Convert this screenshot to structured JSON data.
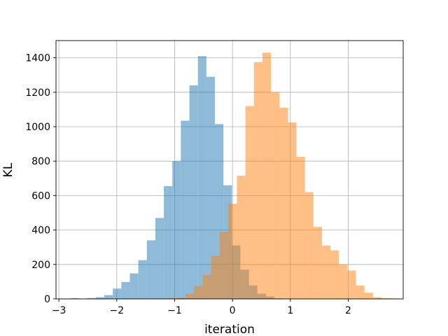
{
  "chart_data": {
    "type": "bar",
    "subtype": "overlaid-histogram",
    "title": "",
    "xlabel": "iteration",
    "ylabel": "KL",
    "xlim": [
      -3.05,
      2.95
    ],
    "ylim": [
      0,
      1500
    ],
    "x_ticks": [
      -3,
      -2,
      -1,
      0,
      1,
      2
    ],
    "x_tick_labels": [
      "−3",
      "−2",
      "−1",
      "0",
      "1",
      "2"
    ],
    "y_ticks": [
      0,
      200,
      400,
      600,
      800,
      1000,
      1200,
      1400
    ],
    "y_tick_labels": [
      "0",
      "200",
      "400",
      "600",
      "800",
      "1000",
      "1200",
      "1400"
    ],
    "grid": true,
    "legend": "none",
    "alpha": 0.5,
    "series": [
      {
        "color": "#1f77b4",
        "bin_start": -2.95,
        "bin_width": 0.147,
        "values": [
          2,
          4,
          0,
          5,
          10,
          22,
          60,
          98,
          148,
          225,
          340,
          470,
          655,
          800,
          1035,
          1240,
          1410,
          1290,
          1015,
          660,
          310,
          170,
          78,
          30,
          14,
          3,
          1,
          0,
          0,
          0,
          0,
          0,
          0,
          0
        ]
      },
      {
        "color": "#ff7f0e",
        "bin_start": -1.1,
        "bin_width": 0.147,
        "values": [
          4,
          8,
          30,
          75,
          140,
          250,
          390,
          552,
          715,
          1120,
          1375,
          1430,
          1200,
          1110,
          1025,
          825,
          620,
          418,
          310,
          282,
          200,
          165,
          78,
          36,
          10,
          4,
          3
        ]
      }
    ]
  }
}
